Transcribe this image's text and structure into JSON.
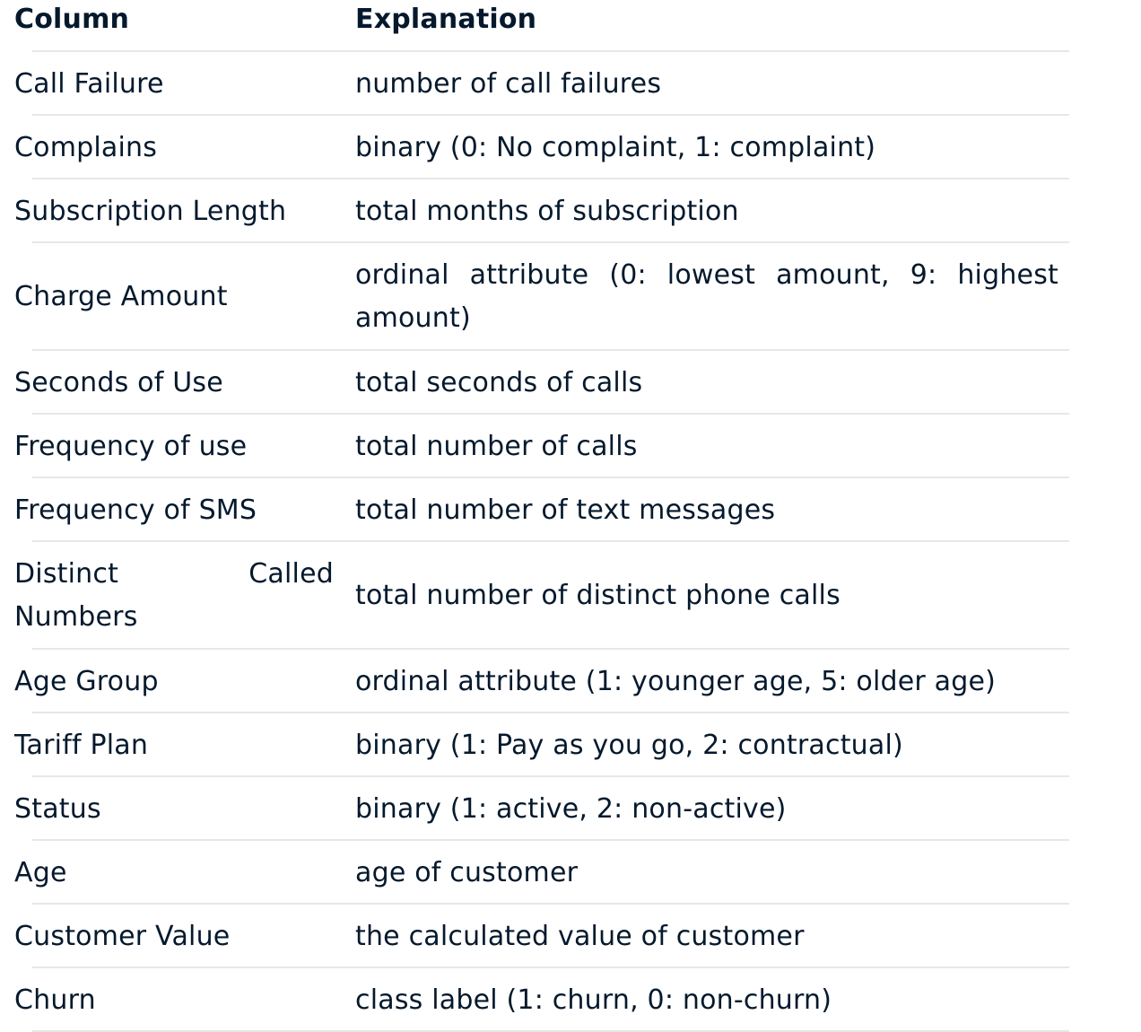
{
  "table": {
    "headers": {
      "column": "Column",
      "explanation": "Explanation"
    },
    "rows": [
      {
        "column": "Call Failure",
        "explanation": "number of call failures"
      },
      {
        "column": "Complains",
        "explanation": "binary (0: No complaint, 1: complaint)"
      },
      {
        "column": "Subscription Length",
        "explanation": "total months of subscription"
      },
      {
        "column": "Charge Amount",
        "explanation": "ordinal attribute (0: lowest amount, 9: highest amount)"
      },
      {
        "column": "Seconds of Use",
        "explanation": "total seconds of calls"
      },
      {
        "column": "Frequency of use",
        "explanation": "total number of calls"
      },
      {
        "column": "Frequency of SMS",
        "explanation": "total number of text messages"
      },
      {
        "column": "Distinct Called Numbers",
        "explanation": "total number of distinct phone calls"
      },
      {
        "column": "Age Group",
        "explanation": "ordinal attribute (1: younger age, 5: older age)"
      },
      {
        "column": "Tariff Plan",
        "explanation": "binary (1: Pay as you go, 2: contractual)"
      },
      {
        "column": "Status",
        "explanation": "binary (1: active, 2: non-active)"
      },
      {
        "column": "Age",
        "explanation": "age of customer"
      },
      {
        "column": "Customer Value",
        "explanation": "the calculated value of customer"
      },
      {
        "column": "Churn",
        "explanation": "class label (1: churn, 0: non-churn)"
      }
    ]
  }
}
